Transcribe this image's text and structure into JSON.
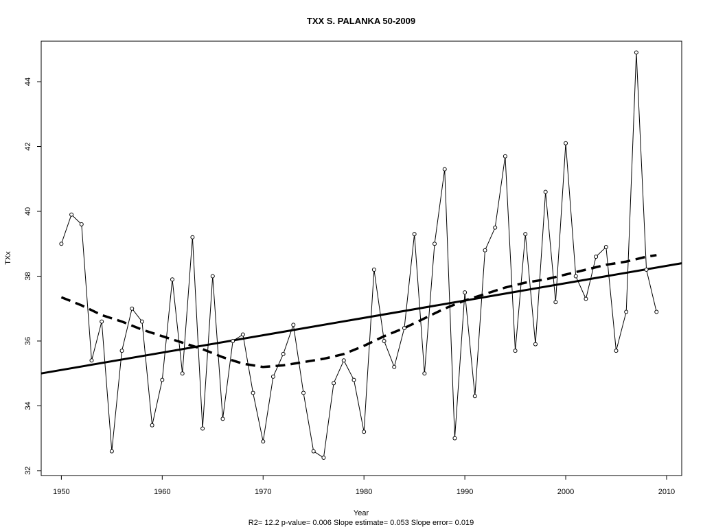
{
  "chart_data": {
    "type": "line",
    "title": "TXX   S. PALANKA 50-2009",
    "xlabel": "Year",
    "ylabel": "TXx",
    "caption": "R2= 12.2  p-value= 0.006  Slope estimate= 0.053  Slope error= 0.019",
    "xlim": [
      1948,
      2011.5
    ],
    "ylim": [
      31.85,
      45.25
    ],
    "x_ticks": [
      1950,
      1960,
      1970,
      1980,
      1990,
      2000,
      2010
    ],
    "y_ticks": [
      32,
      34,
      36,
      38,
      40,
      42,
      44
    ],
    "grid": false,
    "legend": "none",
    "series": [
      {
        "x": [
          1950,
          1951,
          1952,
          1953,
          1954,
          1955,
          1956,
          1957,
          1958,
          1959,
          1960,
          1961,
          1962,
          1963,
          1964,
          1965,
          1966,
          1967,
          1968,
          1969,
          1970,
          1971,
          1972,
          1973,
          1974,
          1975,
          1976,
          1977,
          1978,
          1979,
          1980,
          1981,
          1982,
          1983,
          1984,
          1985,
          1986,
          1987,
          1988,
          1989,
          1990,
          1991,
          1992,
          1993,
          1994,
          1995,
          1996,
          1997,
          1998,
          1999,
          2000,
          2001,
          2002,
          2003,
          2004,
          2005,
          2006,
          2007,
          2008,
          2009
        ],
        "y": [
          39.0,
          39.9,
          39.6,
          35.4,
          36.6,
          32.6,
          35.7,
          37.0,
          36.6,
          33.4,
          34.8,
          37.9,
          35.0,
          39.2,
          33.3,
          38.0,
          33.6,
          36.0,
          36.2,
          34.4,
          32.9,
          34.9,
          35.6,
          36.5,
          34.4,
          32.6,
          32.4,
          34.7,
          35.4,
          34.8,
          33.2,
          38.2,
          36.0,
          35.2,
          36.4,
          39.3,
          35.0,
          39.0,
          41.3,
          33.0,
          37.5,
          34.3,
          38.8,
          39.5,
          41.7,
          35.7,
          39.3,
          35.9,
          40.6,
          37.2,
          42.1,
          38.0,
          37.3,
          38.6,
          38.9,
          35.7,
          36.9,
          44.9,
          38.2,
          36.9
        ],
        "style": "solid-thin-with-circles",
        "color": "#000000"
      },
      {
        "x": [
          1948,
          2011.5
        ],
        "y": [
          35.0,
          38.4
        ],
        "style": "solid-thick",
        "color": "#000000"
      },
      {
        "x": [
          1950,
          1952,
          1954,
          1956,
          1958,
          1960,
          1962,
          1964,
          1966,
          1968,
          1970,
          1972,
          1974,
          1976,
          1978,
          1980,
          1982,
          1984,
          1986,
          1988,
          1990,
          1992,
          1994,
          1996,
          1998,
          2000,
          2002,
          2004,
          2006,
          2008,
          2009
        ],
        "y": [
          37.35,
          37.1,
          36.8,
          36.6,
          36.35,
          36.15,
          35.95,
          35.75,
          35.5,
          35.3,
          35.2,
          35.25,
          35.35,
          35.45,
          35.6,
          35.85,
          36.15,
          36.4,
          36.7,
          37.0,
          37.25,
          37.45,
          37.65,
          37.8,
          37.9,
          38.05,
          38.2,
          38.35,
          38.45,
          38.6,
          38.65
        ],
        "style": "dashed-thick",
        "color": "#000000"
      }
    ]
  }
}
